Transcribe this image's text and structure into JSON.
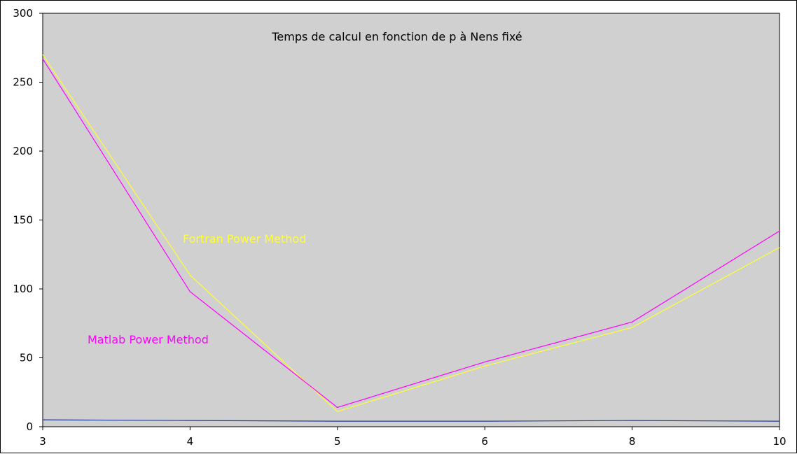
{
  "chart_data": {
    "type": "line",
    "title": "Temps de calcul en fonction de p à Nens fixé",
    "xlabel": "",
    "ylabel": "",
    "categories": [
      "3",
      "4",
      "5",
      "6",
      "8",
      "10"
    ],
    "ylim": [
      0,
      300
    ],
    "yticks": [
      "0",
      "50",
      "100",
      "150",
      "200",
      "250",
      "300"
    ],
    "grid": false,
    "legend": "none",
    "plot_background": "#d0d0d0",
    "series": [
      {
        "name": "Fortran Power Method",
        "color": "#ffff33",
        "values": [
          270,
          110,
          11,
          44,
          72,
          130
        ]
      },
      {
        "name": "Matlab Power Method",
        "color": "#ff00ff",
        "values": [
          267,
          98,
          14,
          47,
          76,
          142
        ]
      },
      {
        "name": "",
        "color": "#1f3a93",
        "values": [
          5,
          4.5,
          4,
          4,
          4.5,
          4
        ]
      }
    ],
    "annotations": [
      {
        "text": "Fortran Power Method",
        "color": "#ffff33"
      },
      {
        "text": "Matlab Power Method",
        "color": "#ff00ff"
      }
    ]
  }
}
